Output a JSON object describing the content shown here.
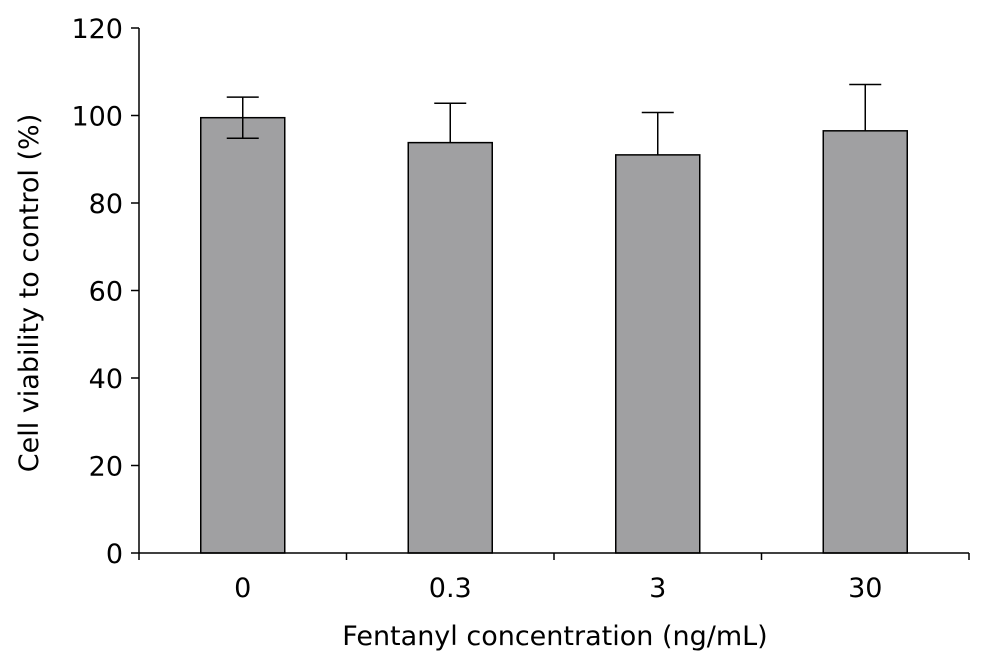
{
  "chart_data": {
    "type": "bar",
    "title": "",
    "xlabel": "Fentanyl concentration (ng/mL)",
    "ylabel": "Cell viability to control (%)",
    "categories": [
      "0",
      "0.3",
      "3",
      "30"
    ],
    "series": [
      {
        "values": [
          99.5,
          93.8,
          91.0,
          96.5
        ],
        "error": [
          4.7,
          9.0,
          9.7,
          10.6
        ]
      }
    ],
    "ylim": [
      0,
      120
    ],
    "yticks": [
      0,
      20,
      40,
      60,
      80,
      100,
      120
    ],
    "ytick_labels": [
      "0",
      "20",
      "40",
      "60",
      "80",
      "100",
      "120"
    ],
    "grid": false,
    "legend": "none",
    "colors": {
      "bar_fill": "#a0a0a2",
      "bar_stroke": "#000000",
      "axis": "#000000"
    }
  }
}
